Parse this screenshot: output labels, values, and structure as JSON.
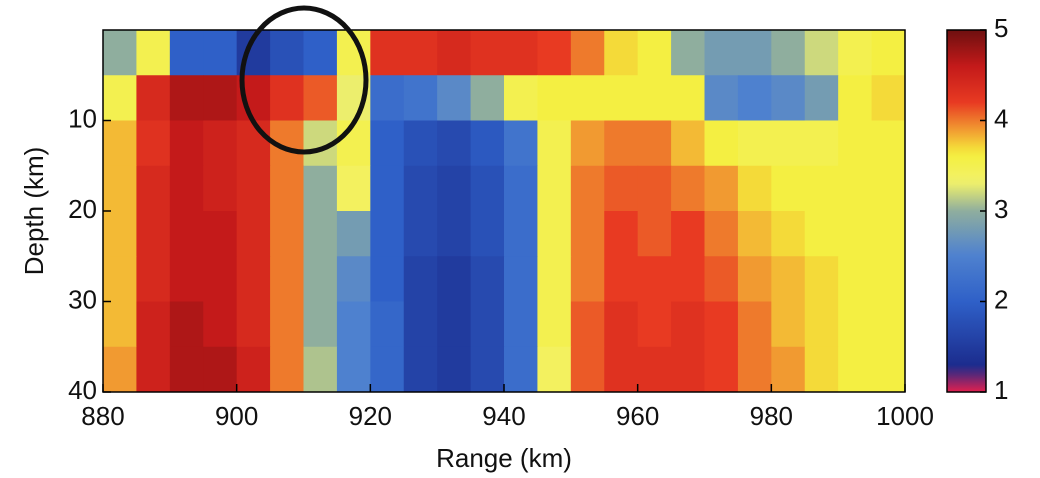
{
  "chart_data": {
    "type": "heatmap",
    "xlabel": "Range (km)",
    "ylabel": "Depth (km)",
    "x": [
      882.5,
      887.5,
      892.5,
      897.5,
      902.5,
      907.5,
      912.5,
      917.5,
      922.5,
      927.5,
      932.5,
      937.5,
      942.5,
      947.5,
      952.5,
      957.5,
      962.5,
      967.5,
      972.5,
      977.5,
      982.5,
      987.5,
      992.5,
      997.5
    ],
    "y": [
      2.5,
      7.5,
      12.5,
      17.5,
      22.5,
      27.5,
      32.5,
      37.5
    ],
    "values": [
      [
        3.0,
        3.5,
        2.0,
        2.0,
        1.5,
        1.8,
        2.0,
        3.5,
        4.3,
        4.3,
        4.4,
        4.3,
        4.3,
        4.2,
        4.0,
        3.7,
        3.6,
        3.0,
        2.8,
        2.8,
        3.0,
        3.2,
        3.5,
        3.6
      ],
      [
        3.5,
        4.4,
        4.7,
        4.7,
        4.6,
        4.3,
        4.1,
        3.3,
        2.2,
        2.3,
        2.6,
        3.0,
        3.5,
        3.6,
        3.6,
        3.6,
        3.6,
        3.6,
        2.6,
        2.5,
        2.6,
        2.8,
        3.6,
        3.7
      ],
      [
        3.8,
        4.3,
        4.6,
        4.5,
        4.4,
        4.0,
        3.2,
        3.5,
        2.0,
        1.8,
        1.7,
        1.9,
        2.3,
        3.5,
        3.9,
        4.0,
        4.0,
        3.8,
        3.6,
        3.5,
        3.5,
        3.5,
        3.6,
        3.6
      ],
      [
        3.8,
        4.4,
        4.6,
        4.5,
        4.4,
        4.0,
        3.0,
        3.4,
        2.0,
        1.7,
        1.6,
        1.8,
        2.2,
        3.5,
        4.0,
        4.1,
        4.1,
        4.0,
        3.9,
        3.7,
        3.6,
        3.6,
        3.6,
        3.6
      ],
      [
        3.8,
        4.4,
        4.6,
        4.6,
        4.4,
        4.0,
        3.0,
        2.8,
        2.0,
        1.7,
        1.6,
        1.8,
        2.2,
        3.5,
        4.0,
        4.2,
        4.1,
        4.2,
        4.0,
        3.8,
        3.7,
        3.6,
        3.6,
        3.6
      ],
      [
        3.8,
        4.4,
        4.6,
        4.6,
        4.4,
        4.0,
        3.0,
        2.6,
        2.0,
        1.6,
        1.5,
        1.7,
        2.2,
        3.5,
        4.0,
        4.2,
        4.2,
        4.2,
        4.1,
        3.9,
        3.8,
        3.7,
        3.6,
        3.6
      ],
      [
        3.8,
        4.5,
        4.7,
        4.6,
        4.4,
        4.0,
        3.0,
        2.5,
        2.1,
        1.6,
        1.5,
        1.7,
        2.2,
        3.5,
        4.1,
        4.3,
        4.2,
        4.3,
        4.2,
        4.0,
        3.8,
        3.7,
        3.6,
        3.6
      ],
      [
        3.9,
        4.5,
        4.7,
        4.7,
        4.5,
        4.0,
        3.1,
        2.5,
        2.1,
        1.6,
        1.5,
        1.7,
        2.2,
        3.4,
        4.1,
        4.3,
        4.3,
        4.3,
        4.2,
        4.0,
        3.9,
        3.7,
        3.6,
        3.6
      ]
    ],
    "xlim": [
      880,
      1000
    ],
    "xticks": [
      880,
      900,
      920,
      940,
      960,
      980,
      1000
    ],
    "ylim": [
      0,
      40
    ],
    "yticks": [
      10,
      20,
      30,
      40
    ],
    "y_inverted": true,
    "clim": [
      1,
      5
    ],
    "cticks": [
      1,
      2,
      3,
      4,
      5
    ]
  }
}
